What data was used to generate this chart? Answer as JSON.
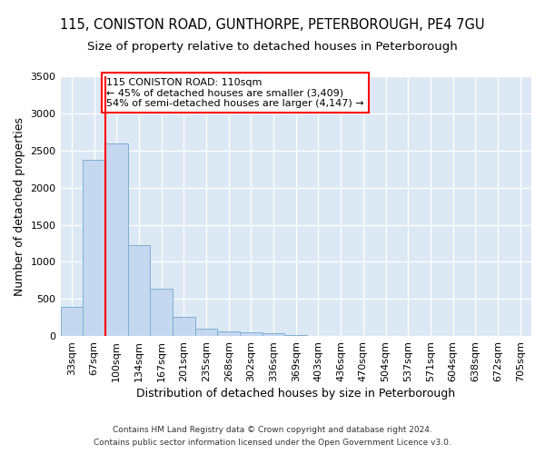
{
  "title_line1": "115, CONISTON ROAD, GUNTHORPE, PETERBOROUGH, PE4 7GU",
  "title_line2": "Size of property relative to detached houses in Peterborough",
  "xlabel": "Distribution of detached houses by size in Peterborough",
  "ylabel": "Number of detached properties",
  "footnote1": "Contains HM Land Registry data © Crown copyright and database right 2024.",
  "footnote2": "Contains public sector information licensed under the Open Government Licence v3.0.",
  "bar_labels": [
    "33sqm",
    "67sqm",
    "100sqm",
    "134sqm",
    "167sqm",
    "201sqm",
    "235sqm",
    "268sqm",
    "302sqm",
    "336sqm",
    "369sqm",
    "403sqm",
    "436sqm",
    "470sqm",
    "504sqm",
    "537sqm",
    "571sqm",
    "604sqm",
    "638sqm",
    "672sqm",
    "705sqm"
  ],
  "bar_values": [
    390,
    2380,
    2600,
    1230,
    640,
    255,
    100,
    58,
    55,
    40,
    20,
    0,
    0,
    0,
    0,
    0,
    0,
    0,
    0,
    0,
    0
  ],
  "bar_color": "#c5d8f0",
  "bar_edge_color": "#7bafd4",
  "background_color": "#dde8f5",
  "vline_color": "red",
  "annotation_text": "115 CONISTON ROAD: 110sqm\n← 45% of detached houses are smaller (3,409)\n54% of semi-detached houses are larger (4,147) →",
  "annotation_box_color": "red",
  "annotation_box_fill": "white",
  "ylim": [
    0,
    3500
  ],
  "yticks": [
    0,
    500,
    1000,
    1500,
    2000,
    2500,
    3000,
    3500
  ],
  "title_fontsize": 10.5,
  "subtitle_fontsize": 9.5,
  "axis_label_fontsize": 9,
  "ylabel_fontsize": 9,
  "tick_fontsize": 8,
  "annotation_fontsize": 8,
  "footnote_fontsize": 6.5
}
